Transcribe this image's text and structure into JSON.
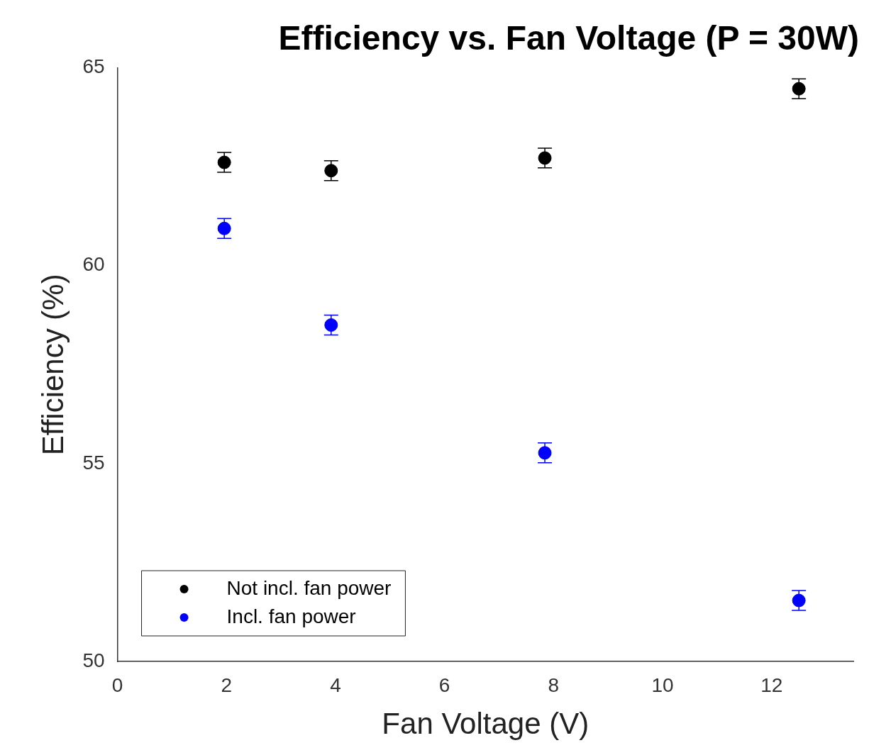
{
  "chart_data": {
    "type": "scatter",
    "title": "Efficiency vs. Fan Voltage (P = 30W)",
    "xlabel": "Fan Voltage (V)",
    "ylabel": "Efficiency (%)",
    "x": [
      1.96,
      3.92,
      7.84,
      12.5
    ],
    "series": [
      {
        "name": "Not incl. fan power",
        "color": "#000000",
        "values": [
          62.61,
          62.4,
          62.72,
          64.47
        ],
        "errors": [
          0.25,
          0.25,
          0.25,
          0.25
        ]
      },
      {
        "name": "Incl. fan power",
        "color": "#0000ff",
        "values": [
          60.94,
          58.5,
          55.27,
          51.54
        ],
        "errors": [
          0.25,
          0.25,
          0.25,
          0.25
        ]
      }
    ],
    "xlim": [
      0,
      13.5
    ],
    "xticks": [
      0,
      2,
      4,
      6,
      8,
      10,
      12
    ],
    "ylim": [
      50,
      65
    ],
    "yticks": [
      50,
      55,
      60,
      65
    ],
    "grid": false,
    "legend": "bottom left",
    "marker": "circle"
  }
}
